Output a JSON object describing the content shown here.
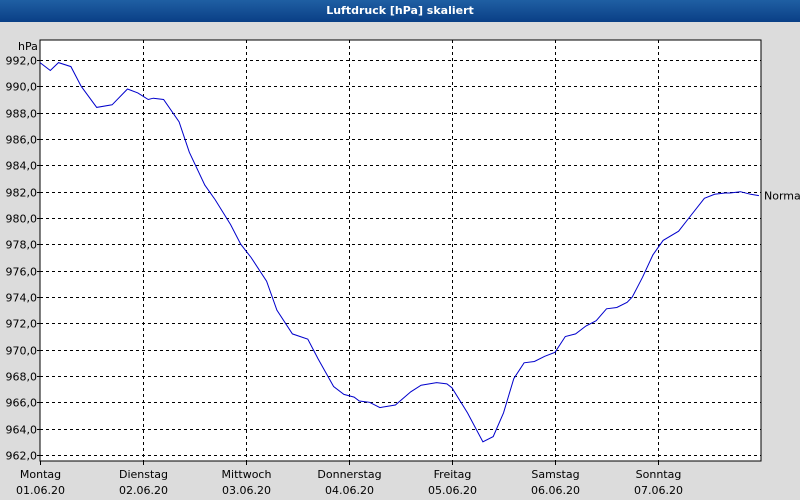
{
  "window": {
    "title": "Luftdruck [hPa] skaliert"
  },
  "colors": {
    "titlebar": "#0a3f86",
    "line": "#0000cc",
    "plot_bg": "#ffffff",
    "grid": "#000000"
  },
  "chart_data": {
    "type": "line",
    "title": "Luftdruck [hPa] skaliert",
    "ylabel": "hPa",
    "ylim": [
      962.0,
      993.0
    ],
    "y_ticks": [
      "992,0",
      "990,0",
      "988,0",
      "986,0",
      "984,0",
      "982,0",
      "980,0",
      "978,0",
      "976,0",
      "974,0",
      "972,0",
      "970,0",
      "968,0",
      "966,0",
      "964,0",
      "962,0"
    ],
    "y_tick_values": [
      992,
      990,
      988,
      986,
      984,
      982,
      980,
      978,
      976,
      974,
      972,
      970,
      968,
      966,
      964,
      962
    ],
    "x_ticks": [
      {
        "day": "Montag",
        "date": "01.06.20"
      },
      {
        "day": "Dienstag",
        "date": "02.06.20"
      },
      {
        "day": "Mittwoch",
        "date": "03.06.20"
      },
      {
        "day": "Donnerstag",
        "date": "04.06.20"
      },
      {
        "day": "Freitag",
        "date": "05.06.20"
      },
      {
        "day": "Samstag",
        "date": "06.06.20"
      },
      {
        "day": "Sonntag",
        "date": "07.06.20"
      }
    ],
    "xlim": [
      "01.06.20",
      "08.06.20"
    ],
    "grid": true,
    "legend": "right",
    "series": [
      {
        "name": "Normal",
        "x_days": [
          0.0,
          0.1,
          0.18,
          0.3,
          0.4,
          0.55,
          0.7,
          0.85,
          0.95,
          1.05,
          1.1,
          1.2,
          1.35,
          1.45,
          1.6,
          1.7,
          1.85,
          1.95,
          2.05,
          2.2,
          2.3,
          2.45,
          2.6,
          2.7,
          2.85,
          2.95,
          3.05,
          3.1,
          3.2,
          3.3,
          3.45,
          3.6,
          3.7,
          3.85,
          3.95,
          4.0,
          4.15,
          4.3,
          4.4,
          4.5,
          4.6,
          4.7,
          4.8,
          4.9,
          5.0,
          5.1,
          5.2,
          5.3,
          5.4,
          5.5,
          5.6,
          5.7,
          5.75,
          5.85,
          5.95,
          6.05,
          6.2,
          6.3,
          6.45,
          6.55,
          6.65,
          6.7,
          6.8,
          6.9,
          6.98
        ],
        "values": [
          991.8,
          991.2,
          991.8,
          991.5,
          990.0,
          988.4,
          988.6,
          989.8,
          989.5,
          989.0,
          989.1,
          989.0,
          987.3,
          985.0,
          982.5,
          981.4,
          979.5,
          978.0,
          977.0,
          975.2,
          973.0,
          971.2,
          970.8,
          969.3,
          967.2,
          966.6,
          966.4,
          966.1,
          966.0,
          965.6,
          965.8,
          966.8,
          967.3,
          967.5,
          967.4,
          967.1,
          965.2,
          963.0,
          963.4,
          965.2,
          967.8,
          969.0,
          969.1,
          969.5,
          969.8,
          971.0,
          971.2,
          971.8,
          972.2,
          973.1,
          973.2,
          973.6,
          974.0,
          975.5,
          977.2,
          978.3,
          979.0,
          980.0,
          981.5,
          981.8,
          981.9,
          981.9,
          982.0,
          981.8,
          981.7
        ]
      }
    ]
  }
}
